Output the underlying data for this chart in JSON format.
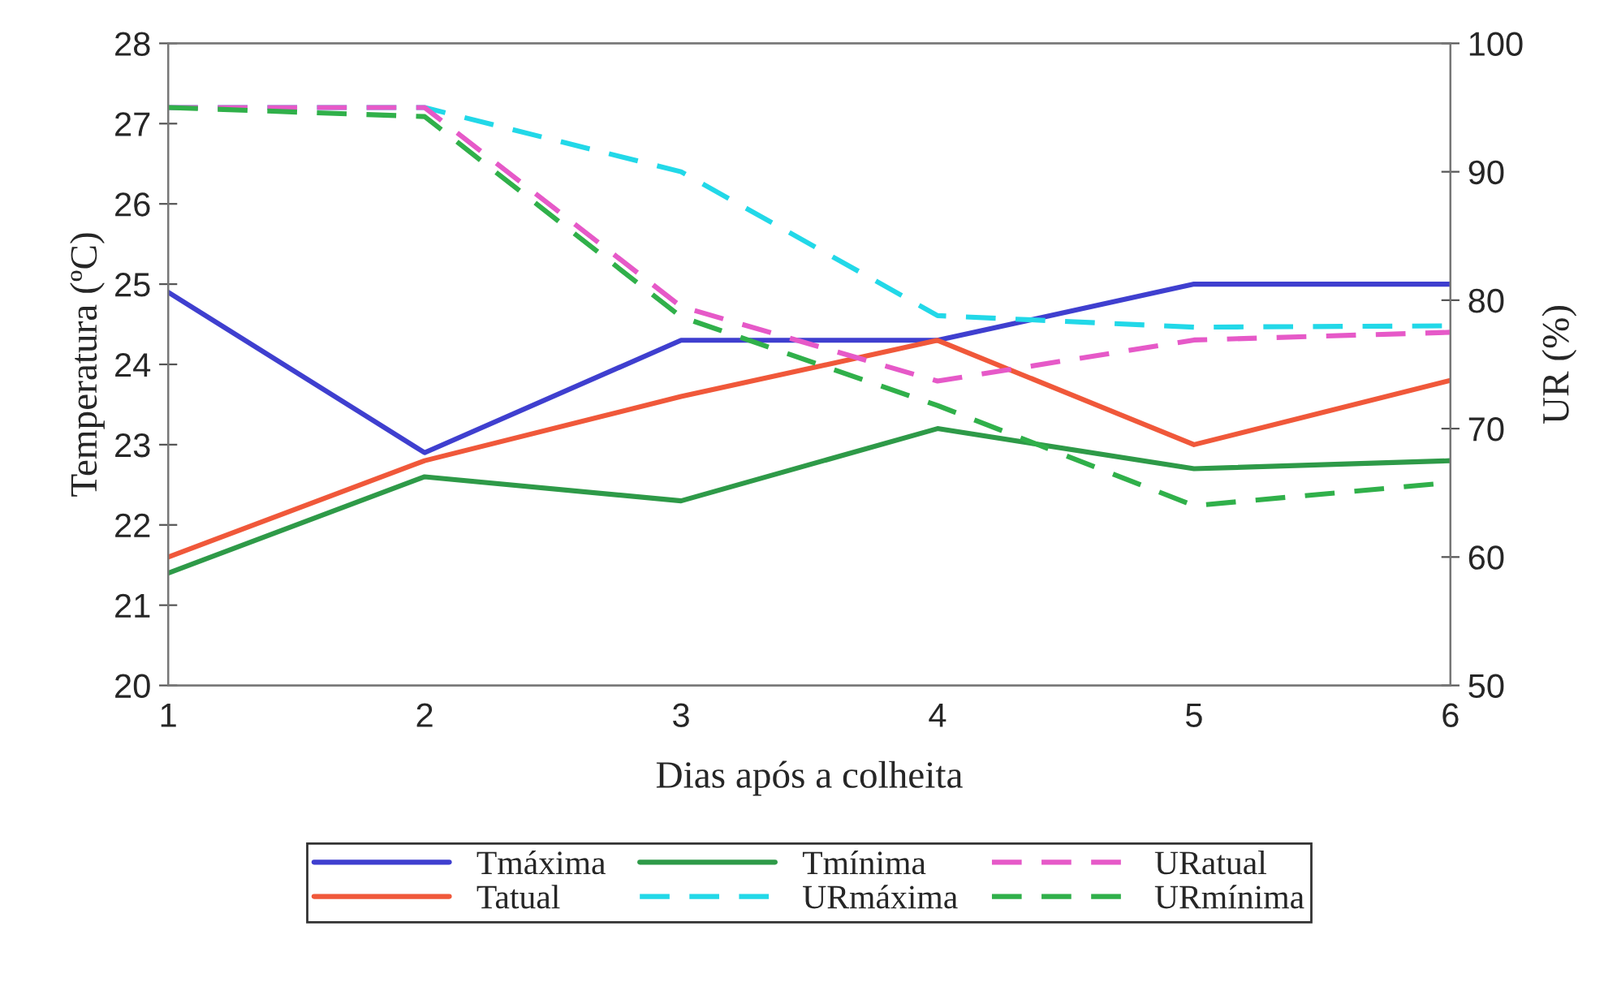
{
  "chart_data": {
    "type": "line",
    "xlabel": "Dias após a colheita",
    "ylabel": "Temperatura (ºC)",
    "y2label": "UR (%)",
    "x": [
      1,
      2,
      3,
      4,
      5,
      6
    ],
    "xlim": [
      1,
      6
    ],
    "xticks": [
      1,
      2,
      3,
      4,
      5,
      6
    ],
    "ylim": [
      20,
      28
    ],
    "yticks": [
      20,
      21,
      22,
      23,
      24,
      25,
      26,
      27,
      28
    ],
    "y2lim": [
      50,
      100
    ],
    "y2ticks": [
      50,
      60,
      70,
      80,
      90,
      100
    ],
    "grid": false,
    "legend": "bottom",
    "marker": "none",
    "series": [
      {
        "name": "Tmáxima",
        "color": "#3f3fcf",
        "line_style": "solid",
        "values": [
          24.9,
          22.9,
          24.3,
          24.3,
          25.0,
          25.0
        ]
      },
      {
        "name": "Tatual",
        "color": "#f0583a",
        "line_style": "solid",
        "values": [
          21.6,
          22.8,
          23.6,
          24.3,
          23.0,
          23.8
        ]
      },
      {
        "name": "Tmínima",
        "color": "#2e9a48",
        "line_style": "solid",
        "values": [
          21.4,
          22.6,
          22.3,
          23.2,
          22.7,
          22.8
        ]
      },
      {
        "name": "URmáxima",
        "color": "#22d8e8",
        "line_style": "dashed",
        "axis": "y2",
        "values": [
          95,
          95,
          90,
          78.8,
          77.9,
          78
        ]
      },
      {
        "name": "URatual",
        "color": "#e659c8",
        "line_style": "dashed",
        "axis": "y2",
        "values": [
          95,
          95,
          79.5,
          73.7,
          76.9,
          77.5
        ]
      },
      {
        "name": "URmínima",
        "color": "#30b04a",
        "line_style": "dashed",
        "axis": "y2",
        "values": [
          95,
          94.3,
          78.7,
          71.8,
          64,
          65.8
        ]
      }
    ]
  }
}
